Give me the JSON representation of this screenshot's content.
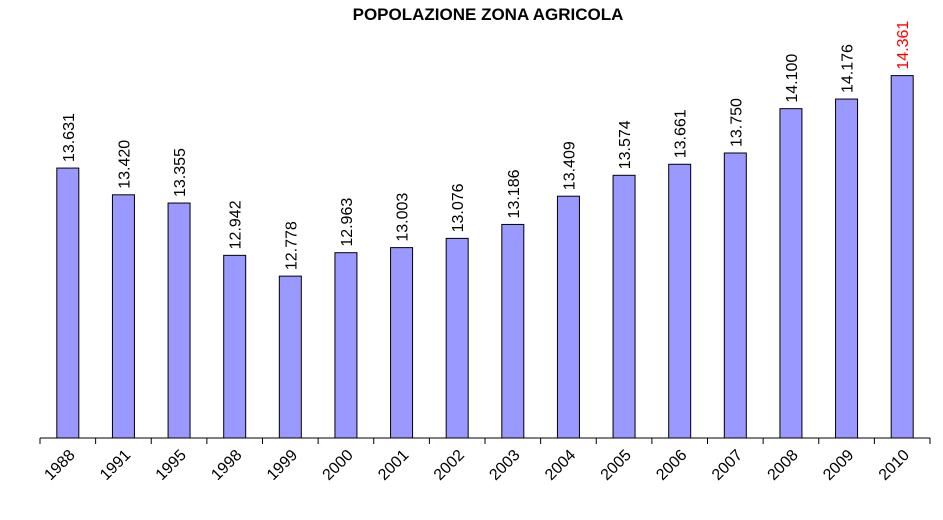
{
  "chart_data": {
    "type": "bar",
    "title": "POPOLAZIONE ZONA AGRICOLA",
    "categories": [
      "1988",
      "1991",
      "1995",
      "1998",
      "1999",
      "2000",
      "2001",
      "2002",
      "2003",
      "2004",
      "2005",
      "2006",
      "2007",
      "2008",
      "2009",
      "2010"
    ],
    "values": [
      13.631,
      13.42,
      13.355,
      12.942,
      12.778,
      12.963,
      13.003,
      13.076,
      13.186,
      13.409,
      13.574,
      13.661,
      13.75,
      14.1,
      14.176,
      14.361
    ],
    "value_labels": [
      "13.631",
      "13.420",
      "13.355",
      "12.942",
      "12.778",
      "12.963",
      "13.003",
      "13.076",
      "13.186",
      "13.409",
      "13.574",
      "13.661",
      "13.750",
      "14.100",
      "14.176",
      "14.361"
    ],
    "label_colors": [
      "#000000",
      "#000000",
      "#000000",
      "#000000",
      "#000000",
      "#000000",
      "#000000",
      "#000000",
      "#000000",
      "#000000",
      "#000000",
      "#000000",
      "#000000",
      "#000000",
      "#000000",
      "#ff0000"
    ],
    "color": "#9999ff",
    "ylim": [
      11.5,
      14.5
    ]
  }
}
